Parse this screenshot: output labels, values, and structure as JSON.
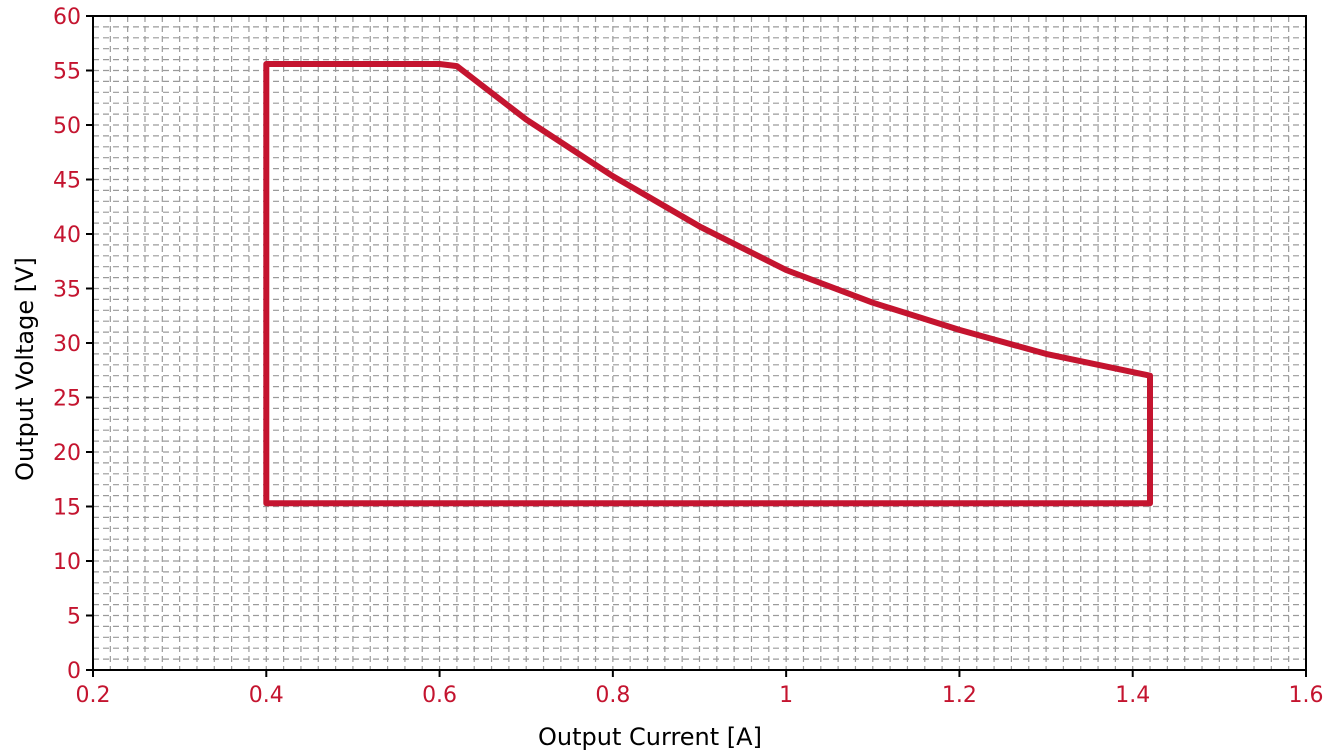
{
  "colors": {
    "curve": "#c4142f",
    "tick_label": "#c4142f",
    "grid": "#9a9a9a",
    "frame": "#000000",
    "axis_title": "#000000"
  },
  "chart_data": {
    "type": "line",
    "title": "",
    "xlabel": "Output Current [A]",
    "ylabel": "Output Voltage [V]",
    "xlim": [
      0.2,
      1.6
    ],
    "ylim": [
      0,
      60
    ],
    "xticks": [
      "0.2",
      "0.4",
      "0.6",
      "0.8",
      "1",
      "1.2",
      "1.4",
      "1.6"
    ],
    "yticks": [
      "0",
      "5",
      "10",
      "15",
      "20",
      "25",
      "30",
      "35",
      "40",
      "45",
      "50",
      "55",
      "60"
    ],
    "grid": true,
    "grid_style": "dashed",
    "legend": "none",
    "series": [
      {
        "closed": true,
        "x": [
          0.4,
          0.6,
          0.62,
          0.7,
          0.8,
          0.9,
          1.0,
          1.1,
          1.2,
          1.3,
          1.42,
          1.42,
          0.4,
          0.4
        ],
        "y": [
          55.6,
          55.6,
          55.4,
          50.5,
          45.3,
          40.7,
          36.7,
          33.7,
          31.2,
          29.0,
          27.0,
          15.3,
          15.3,
          55.6
        ]
      }
    ]
  }
}
